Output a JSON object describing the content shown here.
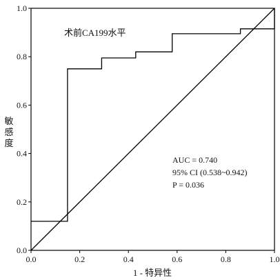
{
  "chart_data": {
    "type": "line",
    "title": "术前CA199水平",
    "xlabel": "1 - 特异性",
    "ylabel": "敏感度",
    "xlim": [
      0.0,
      1.0
    ],
    "ylim": [
      0.0,
      1.0
    ],
    "xticks": [
      "0.0",
      "0.2",
      "0.4",
      "0.6",
      "0.8",
      "1.0"
    ],
    "yticks": [
      "0.0",
      "0.2",
      "0.4",
      "0.6",
      "0.8",
      "1.0"
    ],
    "grid": false,
    "series": [
      {
        "kind": "step",
        "points": [
          [
            0.0,
            0.12
          ],
          [
            0.15,
            0.12
          ],
          [
            0.15,
            0.75
          ],
          [
            0.29,
            0.75
          ],
          [
            0.29,
            0.795
          ],
          [
            0.43,
            0.795
          ],
          [
            0.43,
            0.82
          ],
          [
            0.58,
            0.82
          ],
          [
            0.58,
            0.895
          ],
          [
            0.86,
            0.895
          ],
          [
            0.86,
            0.915
          ],
          [
            1.0,
            0.915
          ],
          [
            1.0,
            1.0
          ]
        ]
      },
      {
        "kind": "reference",
        "points": [
          [
            0.0,
            0.0
          ],
          [
            1.0,
            1.0
          ]
        ]
      }
    ],
    "annotations": [
      "AUC = 0.740",
      "95% CI (0.538~0.942)",
      "P = 0.036"
    ]
  }
}
